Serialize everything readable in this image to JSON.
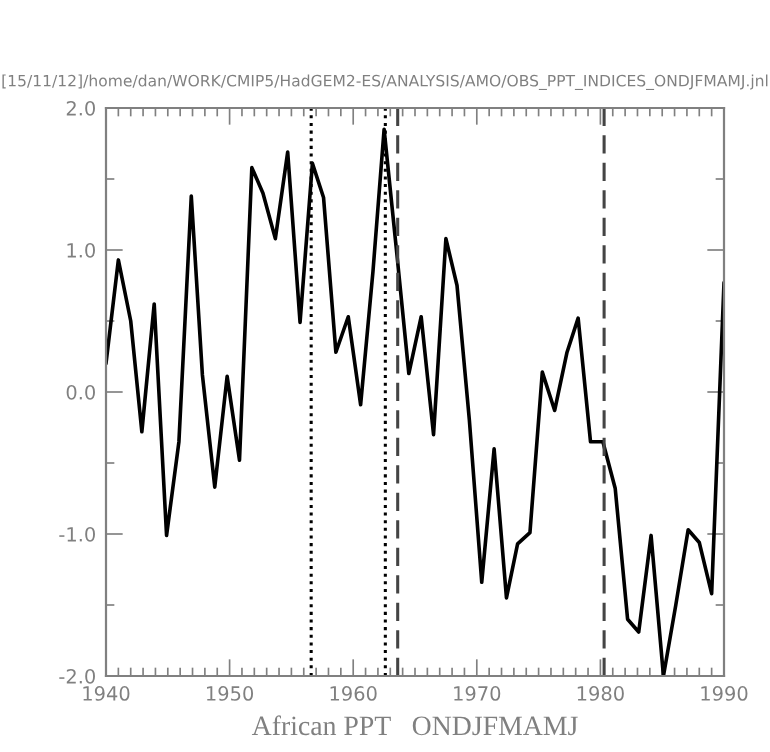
{
  "chart_data": {
    "type": "line",
    "title": "[15/11/12]/home/dan/WORK/CMIP5/HadGEM2-ES/ANALYSIS/AMO/OBS_PPT_INDICES_ONDJFMAMJ.jnl",
    "xlabel": "African PPT   ONDJFMAMJ",
    "series": [
      {
        "color": "#000000",
        "x": [
          1940.0,
          1941.0,
          1942.0,
          1942.9,
          1943.9,
          1944.9,
          1945.9,
          1946.9,
          1947.8,
          1948.8,
          1949.8,
          1950.8,
          1951.8,
          1952.7,
          1953.7,
          1954.7,
          1955.7,
          1956.7,
          1957.6,
          1958.6,
          1959.6,
          1960.6,
          1961.6,
          1962.5,
          1963.5,
          1964.5,
          1965.5,
          1966.5,
          1967.5,
          1968.4,
          1969.4,
          1970.4,
          1971.4,
          1972.4,
          1973.3,
          1974.3,
          1975.3,
          1976.3,
          1977.3,
          1978.2,
          1979.2,
          1980.2,
          1981.2,
          1982.2,
          1983.1,
          1984.1,
          1985.1,
          1986.1,
          1987.1,
          1988.0,
          1989.0,
          1990.0
        ],
        "values": [
          0.2,
          0.93,
          0.5,
          -0.28,
          0.62,
          -1.01,
          -0.35,
          1.38,
          0.12,
          -0.67,
          0.11,
          -0.48,
          1.58,
          1.4,
          1.08,
          1.69,
          0.49,
          1.61,
          1.37,
          0.28,
          0.53,
          -0.09,
          0.85,
          1.85,
          1.0,
          0.13,
          0.53,
          -0.3,
          1.08,
          0.75,
          -0.2,
          -1.34,
          -0.4,
          -1.45,
          -1.07,
          -0.99,
          0.14,
          -0.13,
          0.28,
          0.52,
          -0.35,
          -0.35,
          -0.68,
          -1.6,
          -1.69,
          -1.01,
          -2.0,
          -1.5,
          -0.97,
          -1.06,
          -1.42,
          0.77
        ]
      }
    ],
    "ref_lines": [
      {
        "axis": "x",
        "value": 1956.6,
        "line_style": "dotted",
        "color": "#000000"
      },
      {
        "axis": "x",
        "value": 1962.6,
        "line_style": "dotted",
        "color": "#000000"
      },
      {
        "axis": "x",
        "value": 1963.6,
        "line_style": "dashed",
        "color": "#444444"
      },
      {
        "axis": "x",
        "value": 1980.3,
        "line_style": "dashed",
        "color": "#444444"
      }
    ],
    "xlim": [
      1940,
      1990
    ],
    "xticks": [
      1940,
      {
        "value": 1941,
        "label": null
      },
      {
        "value": 1942,
        "label": null
      },
      {
        "value": 1943,
        "label": null
      },
      {
        "value": 1944,
        "label": null
      },
      {
        "value": 1945,
        "label": null
      },
      {
        "value": 1946,
        "label": null
      },
      {
        "value": 1947,
        "label": null
      },
      {
        "value": 1948,
        "label": null
      },
      {
        "value": 1949,
        "label": null
      },
      1950,
      {
        "value": 1951,
        "label": null
      },
      {
        "value": 1952,
        "label": null
      },
      {
        "value": 1953,
        "label": null
      },
      {
        "value": 1954,
        "label": null
      },
      {
        "value": 1955,
        "label": null
      },
      {
        "value": 1956,
        "label": null
      },
      {
        "value": 1957,
        "label": null
      },
      {
        "value": 1958,
        "label": null
      },
      {
        "value": 1959,
        "label": null
      },
      1960,
      {
        "value": 1961,
        "label": null
      },
      {
        "value": 1962,
        "label": null
      },
      {
        "value": 1963,
        "label": null
      },
      {
        "value": 1964,
        "label": null
      },
      {
        "value": 1965,
        "label": null
      },
      {
        "value": 1966,
        "label": null
      },
      {
        "value": 1967,
        "label": null
      },
      {
        "value": 1968,
        "label": null
      },
      {
        "value": 1969,
        "label": null
      },
      1970,
      {
        "value": 1971,
        "label": null
      },
      {
        "value": 1972,
        "label": null
      },
      {
        "value": 1973,
        "label": null
      },
      {
        "value": 1974,
        "label": null
      },
      {
        "value": 1975,
        "label": null
      },
      {
        "value": 1976,
        "label": null
      },
      {
        "value": 1977,
        "label": null
      },
      {
        "value": 1978,
        "label": null
      },
      {
        "value": 1979,
        "label": null
      },
      1980,
      {
        "value": 1981,
        "label": null
      },
      {
        "value": 1982,
        "label": null
      },
      {
        "value": 1983,
        "label": null
      },
      {
        "value": 1984,
        "label": null
      },
      {
        "value": 1985,
        "label": null
      },
      {
        "value": 1986,
        "label": null
      },
      {
        "value": 1987,
        "label": null
      },
      {
        "value": 1988,
        "label": null
      },
      {
        "value": 1989,
        "label": null
      },
      1990
    ],
    "ylim": [
      -2.0,
      2.0
    ],
    "yticks": [
      {
        "value": -2,
        "label": "-2.0"
      },
      {
        "value": -1.5,
        "label": null
      },
      {
        "value": -1,
        "label": "-1.0"
      },
      {
        "value": -0.5,
        "label": null
      },
      {
        "value": 0,
        "label": "0.0"
      },
      {
        "value": 0.5,
        "label": null
      },
      {
        "value": 1,
        "label": "1.0"
      },
      {
        "value": 1.5,
        "label": null
      },
      {
        "value": 2,
        "label": "2.0"
      }
    ],
    "grid": false,
    "legend": false,
    "marker": "none",
    "line_style": "solid"
  }
}
